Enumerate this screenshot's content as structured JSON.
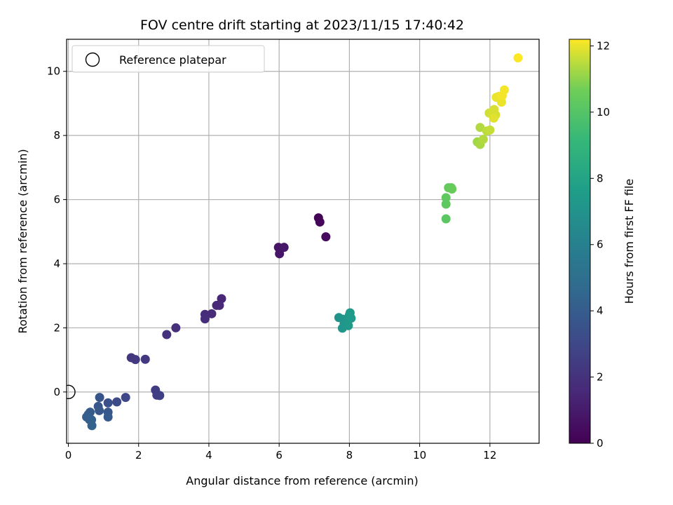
{
  "chart_data": {
    "type": "scatter",
    "title": "FOV centre drift starting at 2023/11/15 17:40:42",
    "xlabel": "Angular distance from reference (arcmin)",
    "ylabel": "Rotation from reference (arcmin)",
    "xlim": [
      -0.05,
      13.4
    ],
    "ylim": [
      -1.6,
      11.0
    ],
    "xticks": [
      0,
      2,
      4,
      6,
      8,
      10,
      12
    ],
    "yticks": [
      0,
      2,
      4,
      6,
      8,
      10
    ],
    "grid": true,
    "legend": {
      "placement": "top-left",
      "entries": [
        "Reference platepar"
      ]
    },
    "reference_point": {
      "x": 0,
      "y": 0
    },
    "colorbar": {
      "label": "Hours from first FF file",
      "range": [
        0,
        12.2
      ],
      "ticks": [
        0,
        2,
        4,
        6,
        8,
        10,
        12
      ],
      "colormap": "viridis"
    },
    "points": [
      {
        "x": 7.12,
        "y": 5.43,
        "c": 0.1
      },
      {
        "x": 7.16,
        "y": 5.3,
        "c": 0.2
      },
      {
        "x": 7.33,
        "y": 4.84,
        "c": 0.4
      },
      {
        "x": 5.98,
        "y": 4.51,
        "c": 0.7
      },
      {
        "x": 6.01,
        "y": 4.31,
        "c": 0.8
      },
      {
        "x": 6.14,
        "y": 4.51,
        "c": 0.9
      },
      {
        "x": 4.36,
        "y": 2.91,
        "c": 1.5
      },
      {
        "x": 4.22,
        "y": 2.7,
        "c": 1.6
      },
      {
        "x": 4.3,
        "y": 2.7,
        "c": 1.6
      },
      {
        "x": 4.08,
        "y": 2.44,
        "c": 1.7
      },
      {
        "x": 3.89,
        "y": 2.42,
        "c": 1.7
      },
      {
        "x": 3.89,
        "y": 2.28,
        "c": 1.8
      },
      {
        "x": 3.06,
        "y": 2.0,
        "c": 1.9
      },
      {
        "x": 2.8,
        "y": 1.79,
        "c": 2.0
      },
      {
        "x": 1.79,
        "y": 1.07,
        "c": 2.2
      },
      {
        "x": 1.91,
        "y": 1.01,
        "c": 2.3
      },
      {
        "x": 2.19,
        "y": 1.02,
        "c": 2.3
      },
      {
        "x": 2.48,
        "y": 0.06,
        "c": 2.5
      },
      {
        "x": 2.52,
        "y": -0.1,
        "c": 2.6
      },
      {
        "x": 2.6,
        "y": -0.11,
        "c": 2.6
      },
      {
        "x": 1.63,
        "y": -0.17,
        "c": 3.0
      },
      {
        "x": 1.38,
        "y": -0.31,
        "c": 3.2
      },
      {
        "x": 1.13,
        "y": -0.34,
        "c": 3.4
      },
      {
        "x": 0.89,
        "y": -0.17,
        "c": 3.6
      },
      {
        "x": 0.85,
        "y": -0.45,
        "c": 3.7
      },
      {
        "x": 0.88,
        "y": -0.58,
        "c": 3.8
      },
      {
        "x": 1.13,
        "y": -0.63,
        "c": 3.8
      },
      {
        "x": 1.13,
        "y": -0.78,
        "c": 3.9
      },
      {
        "x": 0.62,
        "y": -0.63,
        "c": 4.0
      },
      {
        "x": 0.57,
        "y": -0.7,
        "c": 4.0
      },
      {
        "x": 0.52,
        "y": -0.78,
        "c": 4.1
      },
      {
        "x": 0.6,
        "y": -0.86,
        "c": 4.1
      },
      {
        "x": 0.66,
        "y": -0.87,
        "c": 4.2
      },
      {
        "x": 0.67,
        "y": -1.05,
        "c": 4.3
      },
      {
        "x": 7.7,
        "y": 2.32,
        "c": 7.0
      },
      {
        "x": 7.82,
        "y": 2.27,
        "c": 7.1
      },
      {
        "x": 7.85,
        "y": 2.13,
        "c": 7.1
      },
      {
        "x": 7.8,
        "y": 1.99,
        "c": 7.2
      },
      {
        "x": 7.93,
        "y": 2.2,
        "c": 7.2
      },
      {
        "x": 7.97,
        "y": 2.07,
        "c": 7.3
      },
      {
        "x": 8.0,
        "y": 2.4,
        "c": 7.3
      },
      {
        "x": 8.02,
        "y": 2.47,
        "c": 7.4
      },
      {
        "x": 8.05,
        "y": 2.3,
        "c": 7.4
      },
      {
        "x": 10.75,
        "y": 5.4,
        "c": 10.2
      },
      {
        "x": 10.75,
        "y": 5.86,
        "c": 10.3
      },
      {
        "x": 10.75,
        "y": 6.06,
        "c": 10.3
      },
      {
        "x": 10.82,
        "y": 6.37,
        "c": 10.4
      },
      {
        "x": 10.9,
        "y": 6.37,
        "c": 10.4
      },
      {
        "x": 10.92,
        "y": 6.33,
        "c": 10.5
      },
      {
        "x": 11.64,
        "y": 7.8,
        "c": 11.2
      },
      {
        "x": 11.72,
        "y": 7.72,
        "c": 11.3
      },
      {
        "x": 11.81,
        "y": 7.88,
        "c": 11.4
      },
      {
        "x": 11.72,
        "y": 8.25,
        "c": 11.4
      },
      {
        "x": 11.91,
        "y": 8.14,
        "c": 11.5
      },
      {
        "x": 12.0,
        "y": 8.17,
        "c": 11.6
      },
      {
        "x": 11.98,
        "y": 8.7,
        "c": 11.7
      },
      {
        "x": 12.07,
        "y": 8.64,
        "c": 11.8
      },
      {
        "x": 12.12,
        "y": 8.81,
        "c": 11.8
      },
      {
        "x": 12.16,
        "y": 8.64,
        "c": 11.8
      },
      {
        "x": 12.11,
        "y": 8.54,
        "c": 11.9
      },
      {
        "x": 12.18,
        "y": 9.19,
        "c": 12.0
      },
      {
        "x": 12.26,
        "y": 9.22,
        "c": 12.0
      },
      {
        "x": 12.33,
        "y": 9.04,
        "c": 12.0
      },
      {
        "x": 12.35,
        "y": 9.24,
        "c": 12.1
      },
      {
        "x": 12.41,
        "y": 9.42,
        "c": 12.1
      },
      {
        "x": 12.8,
        "y": 10.42,
        "c": 12.2
      }
    ]
  }
}
